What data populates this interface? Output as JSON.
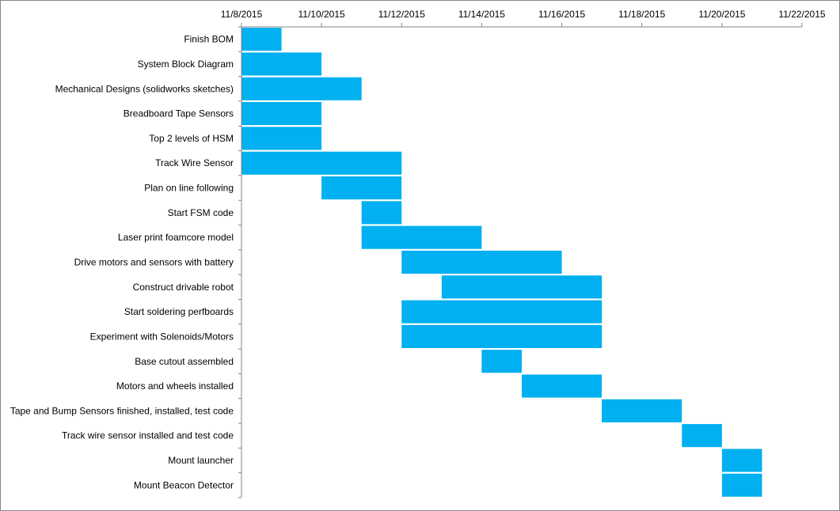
{
  "chart_data": {
    "type": "bar",
    "orientation": "horizontal",
    "x_axis_position": "top",
    "x_ticks": [
      "11/8/2015",
      "11/10/2015",
      "11/12/2015",
      "11/14/2015",
      "11/16/2015",
      "11/18/2015",
      "11/20/2015",
      "11/22/2015"
    ],
    "xlim": [
      "2015-11-08",
      "2015-11-22"
    ],
    "grid": false,
    "bar_color": "#00B0F0",
    "tasks": [
      {
        "name": "Finish BOM",
        "start": "2015-11-08",
        "end": "2015-11-09"
      },
      {
        "name": "System Block Diagram",
        "start": "2015-11-08",
        "end": "2015-11-10"
      },
      {
        "name": "Mechanical Designs (solidworks sketches)",
        "start": "2015-11-08",
        "end": "2015-11-11"
      },
      {
        "name": "Breadboard Tape Sensors",
        "start": "2015-11-08",
        "end": "2015-11-10"
      },
      {
        "name": "Top 2 levels of HSM",
        "start": "2015-11-08",
        "end": "2015-11-10"
      },
      {
        "name": "Track Wire Sensor",
        "start": "2015-11-08",
        "end": "2015-11-12"
      },
      {
        "name": "Plan on line following",
        "start": "2015-11-10",
        "end": "2015-11-12"
      },
      {
        "name": "Start FSM code",
        "start": "2015-11-11",
        "end": "2015-11-12"
      },
      {
        "name": "Laser print foamcore model",
        "start": "2015-11-11",
        "end": "2015-11-14"
      },
      {
        "name": "Drive motors and sensors with battery",
        "start": "2015-11-12",
        "end": "2015-11-16"
      },
      {
        "name": "Construct drivable robot",
        "start": "2015-11-13",
        "end": "2015-11-17"
      },
      {
        "name": "Start soldering perfboards",
        "start": "2015-11-12",
        "end": "2015-11-17"
      },
      {
        "name": "Experiment with Solenoids/Motors",
        "start": "2015-11-12",
        "end": "2015-11-17"
      },
      {
        "name": "Base cutout assembled",
        "start": "2015-11-14",
        "end": "2015-11-15"
      },
      {
        "name": "Motors and wheels installed",
        "start": "2015-11-15",
        "end": "2015-11-17"
      },
      {
        "name": "Tape and Bump Sensors finished, installed, test code",
        "start": "2015-11-17",
        "end": "2015-11-19"
      },
      {
        "name": "Track wire sensor installed and test code",
        "start": "2015-11-19",
        "end": "2015-11-20"
      },
      {
        "name": "Mount launcher",
        "start": "2015-11-20",
        "end": "2015-11-21"
      },
      {
        "name": "Mount Beacon Detector",
        "start": "2015-11-20",
        "end": "2015-11-21"
      }
    ]
  }
}
